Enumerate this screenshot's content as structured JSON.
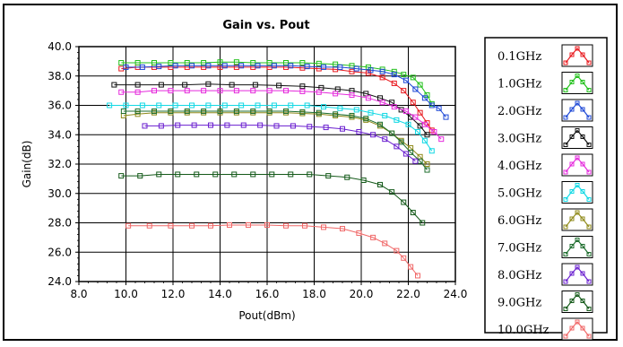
{
  "chart_data": {
    "type": "line",
    "title": "Gain vs. Pout",
    "xlabel": "Pout(dBm)",
    "ylabel": "Gain(dB)",
    "xlim": [
      8.0,
      24.0
    ],
    "ylim": [
      24.0,
      40.0
    ],
    "xticks": [
      "8.0",
      "10.0",
      "12.0",
      "14.0",
      "16.0",
      "18.0",
      "20.0",
      "22.0",
      "24.0"
    ],
    "yticks": [
      "24.0",
      "26.0",
      "28.0",
      "30.0",
      "32.0",
      "34.0",
      "36.0",
      "38.0",
      "40.0"
    ],
    "grid": true,
    "legend": "right",
    "series": [
      {
        "name": "0.1GHz",
        "color": "#e8191e",
        "points": [
          [
            9.8,
            38.5
          ],
          [
            10.5,
            38.6
          ],
          [
            11.2,
            38.6
          ],
          [
            11.9,
            38.6
          ],
          [
            12.6,
            38.6
          ],
          [
            13.3,
            38.6
          ],
          [
            14.0,
            38.6
          ],
          [
            14.7,
            38.6
          ],
          [
            15.4,
            38.6
          ],
          [
            16.1,
            38.6
          ],
          [
            16.8,
            38.6
          ],
          [
            17.5,
            38.55
          ],
          [
            18.2,
            38.5
          ],
          [
            18.9,
            38.45
          ],
          [
            19.6,
            38.3
          ],
          [
            20.3,
            38.2
          ],
          [
            20.9,
            37.9
          ],
          [
            21.4,
            37.5
          ],
          [
            21.8,
            37.0
          ],
          [
            22.2,
            36.2
          ],
          [
            22.5,
            35.5
          ],
          [
            22.8,
            34.8
          ],
          [
            23.0,
            34.3
          ]
        ]
      },
      {
        "name": "1.0GHz",
        "color": "#22c01b",
        "points": [
          [
            9.8,
            38.9
          ],
          [
            10.5,
            38.9
          ],
          [
            11.2,
            38.9
          ],
          [
            11.9,
            38.9
          ],
          [
            12.6,
            38.9
          ],
          [
            13.3,
            38.9
          ],
          [
            14.0,
            38.95
          ],
          [
            14.7,
            38.95
          ],
          [
            15.4,
            38.9
          ],
          [
            16.1,
            38.9
          ],
          [
            16.8,
            38.9
          ],
          [
            17.5,
            38.9
          ],
          [
            18.2,
            38.85
          ],
          [
            18.9,
            38.8
          ],
          [
            19.6,
            38.7
          ],
          [
            20.3,
            38.6
          ],
          [
            20.9,
            38.45
          ],
          [
            21.4,
            38.3
          ],
          [
            21.8,
            38.1
          ],
          [
            22.2,
            37.9
          ],
          [
            22.5,
            37.4
          ],
          [
            22.8,
            36.7
          ],
          [
            23.0,
            36.1
          ]
        ]
      },
      {
        "name": "2.0GHz",
        "color": "#1c47d6",
        "points": [
          [
            10.0,
            38.6
          ],
          [
            10.7,
            38.6
          ],
          [
            11.4,
            38.65
          ],
          [
            12.1,
            38.7
          ],
          [
            12.8,
            38.7
          ],
          [
            13.5,
            38.7
          ],
          [
            14.2,
            38.7
          ],
          [
            14.9,
            38.7
          ],
          [
            15.6,
            38.7
          ],
          [
            16.3,
            38.7
          ],
          [
            17.0,
            38.7
          ],
          [
            17.7,
            38.65
          ],
          [
            18.4,
            38.6
          ],
          [
            19.1,
            38.6
          ],
          [
            19.8,
            38.5
          ],
          [
            20.4,
            38.4
          ],
          [
            20.9,
            38.3
          ],
          [
            21.4,
            38.1
          ],
          [
            21.9,
            37.7
          ],
          [
            22.3,
            37.1
          ],
          [
            22.7,
            36.5
          ],
          [
            23.0,
            36.0
          ],
          [
            23.3,
            35.8
          ],
          [
            23.6,
            35.2
          ]
        ]
      },
      {
        "name": "3.0GHz",
        "color": "#111111",
        "points": [
          [
            9.5,
            37.4
          ],
          [
            10.5,
            37.4
          ],
          [
            11.5,
            37.4
          ],
          [
            12.5,
            37.4
          ],
          [
            13.5,
            37.45
          ],
          [
            14.5,
            37.4
          ],
          [
            15.5,
            37.4
          ],
          [
            16.5,
            37.35
          ],
          [
            17.5,
            37.3
          ],
          [
            18.3,
            37.2
          ],
          [
            19.0,
            37.1
          ],
          [
            19.6,
            37.0
          ],
          [
            20.2,
            36.8
          ],
          [
            20.8,
            36.5
          ],
          [
            21.3,
            36.2
          ],
          [
            21.7,
            35.7
          ],
          [
            22.1,
            35.2
          ],
          [
            22.5,
            34.6
          ],
          [
            22.8,
            34.0
          ]
        ]
      },
      {
        "name": "4.0GHz",
        "color": "#e52adc",
        "points": [
          [
            9.8,
            36.9
          ],
          [
            10.5,
            36.9
          ],
          [
            11.2,
            37.0
          ],
          [
            11.9,
            37.0
          ],
          [
            12.6,
            37.0
          ],
          [
            13.3,
            37.0
          ],
          [
            14.0,
            37.0
          ],
          [
            14.7,
            37.0
          ],
          [
            15.4,
            37.0
          ],
          [
            16.1,
            37.0
          ],
          [
            16.8,
            37.0
          ],
          [
            17.5,
            36.95
          ],
          [
            18.2,
            36.9
          ],
          [
            18.9,
            36.8
          ],
          [
            19.6,
            36.7
          ],
          [
            20.3,
            36.5
          ],
          [
            20.9,
            36.2
          ],
          [
            21.4,
            35.9
          ],
          [
            21.9,
            35.6
          ],
          [
            22.3,
            35.2
          ],
          [
            22.7,
            34.7
          ],
          [
            23.1,
            34.2
          ],
          [
            23.4,
            33.7
          ]
        ]
      },
      {
        "name": "5.0GHz",
        "color": "#12d8e4",
        "points": [
          [
            9.3,
            36.0
          ],
          [
            10.0,
            36.0
          ],
          [
            10.7,
            36.0
          ],
          [
            11.4,
            36.0
          ],
          [
            12.1,
            36.0
          ],
          [
            12.8,
            36.0
          ],
          [
            13.5,
            36.0
          ],
          [
            14.2,
            36.0
          ],
          [
            14.9,
            36.0
          ],
          [
            15.6,
            36.0
          ],
          [
            16.3,
            36.0
          ],
          [
            17.0,
            36.0
          ],
          [
            17.7,
            36.0
          ],
          [
            18.4,
            35.9
          ],
          [
            19.1,
            35.8
          ],
          [
            19.8,
            35.7
          ],
          [
            20.4,
            35.5
          ],
          [
            21.0,
            35.3
          ],
          [
            21.5,
            35.0
          ],
          [
            22.0,
            34.7
          ],
          [
            22.4,
            34.2
          ],
          [
            22.7,
            33.6
          ],
          [
            23.0,
            32.9
          ]
        ]
      },
      {
        "name": "6.0GHz",
        "color": "#8f8a1a",
        "points": [
          [
            9.9,
            35.3
          ],
          [
            10.5,
            35.4
          ],
          [
            11.2,
            35.5
          ],
          [
            11.9,
            35.5
          ],
          [
            12.6,
            35.5
          ],
          [
            13.3,
            35.5
          ],
          [
            14.0,
            35.5
          ],
          [
            14.7,
            35.5
          ],
          [
            15.4,
            35.5
          ],
          [
            16.1,
            35.5
          ],
          [
            16.8,
            35.5
          ],
          [
            17.5,
            35.45
          ],
          [
            18.2,
            35.4
          ],
          [
            18.9,
            35.3
          ],
          [
            19.6,
            35.2
          ],
          [
            20.2,
            35.0
          ],
          [
            20.8,
            34.6
          ],
          [
            21.3,
            34.1
          ],
          [
            21.7,
            33.6
          ],
          [
            22.1,
            33.1
          ],
          [
            22.5,
            32.5
          ],
          [
            22.8,
            32.0
          ]
        ]
      },
      {
        "name": "7.0GHz",
        "color": "#1f6e2f",
        "points": [
          [
            9.9,
            35.6
          ],
          [
            10.5,
            35.6
          ],
          [
            11.2,
            35.6
          ],
          [
            11.9,
            35.6
          ],
          [
            12.6,
            35.6
          ],
          [
            13.3,
            35.6
          ],
          [
            14.0,
            35.6
          ],
          [
            14.7,
            35.6
          ],
          [
            15.4,
            35.6
          ],
          [
            16.1,
            35.6
          ],
          [
            16.8,
            35.6
          ],
          [
            17.5,
            35.55
          ],
          [
            18.2,
            35.5
          ],
          [
            18.9,
            35.4
          ],
          [
            19.6,
            35.3
          ],
          [
            20.2,
            35.1
          ],
          [
            20.8,
            34.7
          ],
          [
            21.3,
            34.1
          ],
          [
            21.7,
            33.5
          ],
          [
            22.1,
            32.8
          ],
          [
            22.5,
            32.2
          ],
          [
            22.8,
            31.6
          ]
        ]
      },
      {
        "name": "8.0GHz",
        "color": "#6a1fcf",
        "points": [
          [
            10.8,
            34.6
          ],
          [
            11.5,
            34.6
          ],
          [
            12.2,
            34.65
          ],
          [
            12.9,
            34.65
          ],
          [
            13.6,
            34.65
          ],
          [
            14.3,
            34.65
          ],
          [
            15.0,
            34.65
          ],
          [
            15.7,
            34.65
          ],
          [
            16.4,
            34.6
          ],
          [
            17.1,
            34.6
          ],
          [
            17.8,
            34.55
          ],
          [
            18.5,
            34.5
          ],
          [
            19.2,
            34.4
          ],
          [
            19.9,
            34.2
          ],
          [
            20.5,
            34.0
          ],
          [
            21.0,
            33.7
          ],
          [
            21.5,
            33.2
          ],
          [
            21.9,
            32.7
          ],
          [
            22.3,
            32.2
          ]
        ]
      },
      {
        "name": "9.0GHz",
        "color": "#155a1a",
        "points": [
          [
            9.8,
            31.2
          ],
          [
            10.6,
            31.2
          ],
          [
            11.4,
            31.3
          ],
          [
            12.2,
            31.3
          ],
          [
            13.0,
            31.3
          ],
          [
            13.8,
            31.3
          ],
          [
            14.6,
            31.3
          ],
          [
            15.4,
            31.3
          ],
          [
            16.2,
            31.3
          ],
          [
            17.0,
            31.3
          ],
          [
            17.8,
            31.3
          ],
          [
            18.6,
            31.2
          ],
          [
            19.4,
            31.1
          ],
          [
            20.1,
            30.9
          ],
          [
            20.8,
            30.6
          ],
          [
            21.3,
            30.1
          ],
          [
            21.8,
            29.4
          ],
          [
            22.2,
            28.7
          ],
          [
            22.6,
            28.0
          ]
        ]
      },
      {
        "name": "10.0GHz",
        "color": "#f06868",
        "points": [
          [
            10.1,
            27.8
          ],
          [
            11.0,
            27.8
          ],
          [
            11.9,
            27.8
          ],
          [
            12.8,
            27.8
          ],
          [
            13.6,
            27.8
          ],
          [
            14.4,
            27.85
          ],
          [
            15.2,
            27.85
          ],
          [
            16.0,
            27.85
          ],
          [
            16.8,
            27.8
          ],
          [
            17.6,
            27.8
          ],
          [
            18.4,
            27.7
          ],
          [
            19.2,
            27.6
          ],
          [
            19.9,
            27.3
          ],
          [
            20.5,
            27.0
          ],
          [
            21.0,
            26.6
          ],
          [
            21.5,
            26.1
          ],
          [
            21.8,
            25.6
          ],
          [
            22.1,
            25.0
          ],
          [
            22.4,
            24.4
          ]
        ]
      }
    ]
  }
}
